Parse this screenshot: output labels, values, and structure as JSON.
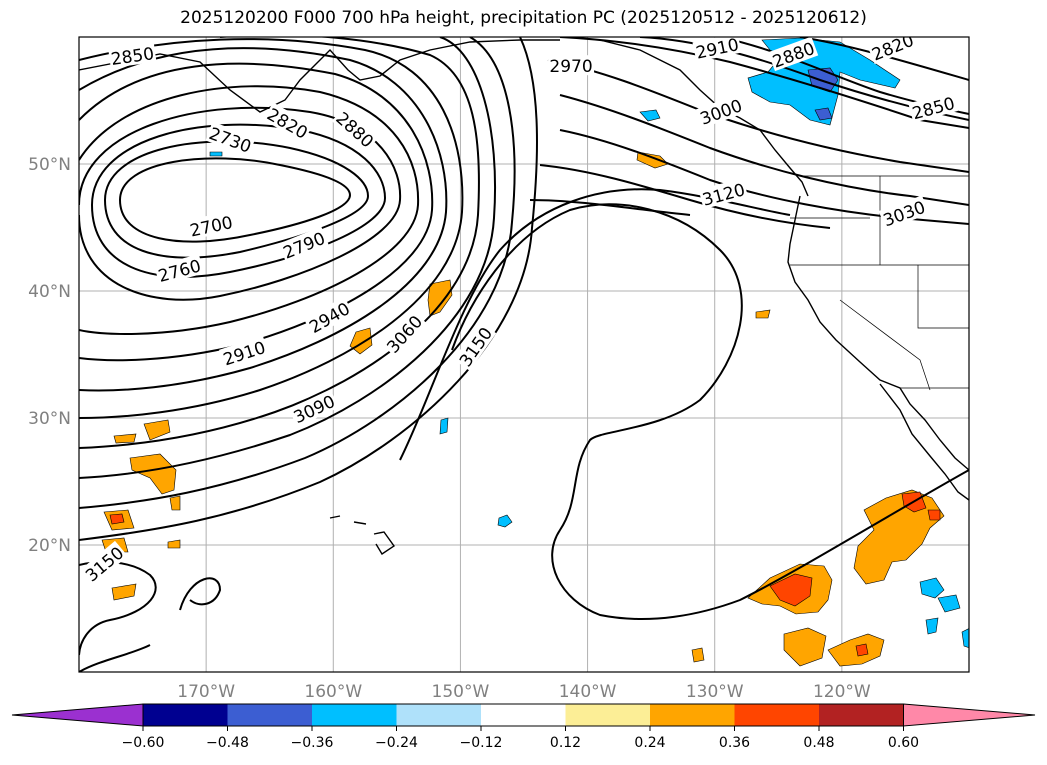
{
  "title": "2025120200 F000 700 hPa height, precipitation PC (2025120512 - 2025120612)",
  "map": {
    "lon_range": [
      -180,
      -110
    ],
    "lat_range": [
      10,
      60
    ],
    "lat_ticks": [
      {
        "value": 50,
        "label": "50°N"
      },
      {
        "value": 40,
        "label": "40°N"
      },
      {
        "value": 30,
        "label": "30°N"
      },
      {
        "value": 20,
        "label": "20°N"
      }
    ],
    "lon_ticks": [
      {
        "value": -170,
        "label": "170°W"
      },
      {
        "value": -160,
        "label": "160°W"
      },
      {
        "value": -150,
        "label": "150°W"
      },
      {
        "value": -140,
        "label": "140°W"
      },
      {
        "value": -130,
        "label": "130°W"
      },
      {
        "value": -120,
        "label": "120°W"
      }
    ],
    "gridlines": true,
    "contour_labels": [
      {
        "text": "2850",
        "lon": -175.8,
        "lat": 58.5,
        "rot": -8
      },
      {
        "text": "2730",
        "lon": -168.1,
        "lat": 51.9,
        "rot": 20
      },
      {
        "text": "2820",
        "lon": -163.6,
        "lat": 53.2,
        "rot": 30
      },
      {
        "text": "2880",
        "lon": -158.3,
        "lat": 52.7,
        "rot": 42
      },
      {
        "text": "2700",
        "lon": -169.6,
        "lat": 45.1,
        "rot": -12
      },
      {
        "text": "2790",
        "lon": -162.3,
        "lat": 43.6,
        "rot": -22
      },
      {
        "text": "2760",
        "lon": -172.1,
        "lat": 41.6,
        "rot": -15
      },
      {
        "text": "2940",
        "lon": -160.3,
        "lat": 37.9,
        "rot": -30
      },
      {
        "text": "2910",
        "lon": -167.0,
        "lat": 35.1,
        "rot": -18
      },
      {
        "text": "3060",
        "lon": -154.4,
        "lat": 36.6,
        "rot": -48
      },
      {
        "text": "3150",
        "lon": -148.8,
        "lat": 35.6,
        "rot": -55
      },
      {
        "text": "3090",
        "lon": -161.5,
        "lat": 30.7,
        "rot": -25
      },
      {
        "text": "2970",
        "lon": -141.3,
        "lat": 57.7,
        "rot": 0
      },
      {
        "text": "2910",
        "lon": -129.8,
        "lat": 59.1,
        "rot": -12
      },
      {
        "text": "2880",
        "lon": -123.8,
        "lat": 58.6,
        "rot": -20
      },
      {
        "text": "2820",
        "lon": -116.0,
        "lat": 59.2,
        "rot": -22
      },
      {
        "text": "3000",
        "lon": -129.5,
        "lat": 54.1,
        "rot": -20
      },
      {
        "text": "2850",
        "lon": -112.8,
        "lat": 54.4,
        "rot": -15
      },
      {
        "text": "3120",
        "lon": -129.3,
        "lat": 47.6,
        "rot": -15
      },
      {
        "text": "3030",
        "lon": -115.1,
        "lat": 46.1,
        "rot": -20
      },
      {
        "text": "3150",
        "lon": -178.0,
        "lat": 18.5,
        "rot": -40
      }
    ]
  },
  "colorbar": {
    "colors": [
      "#9b30d0",
      "#000090",
      "#3c5ed2",
      "#00bfff",
      "#afe1fa",
      "#ffffff",
      "#fcee96",
      "#ffa500",
      "#ff4500",
      "#b22222",
      "#ff88a8"
    ],
    "under_color": "#9b30d0",
    "over_color": "#ff88a8",
    "labels": [
      "−0.60",
      "−0.48",
      "−0.36",
      "−0.24",
      "−0.12",
      "0.12",
      "0.24",
      "0.36",
      "0.48",
      "0.60"
    ]
  }
}
